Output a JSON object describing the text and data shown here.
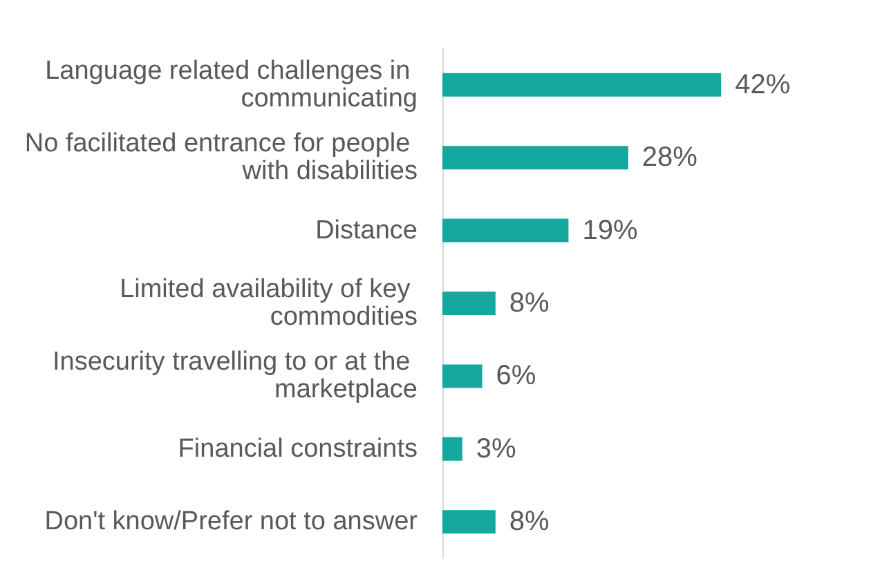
{
  "chart_data": {
    "type": "bar",
    "orientation": "horizontal",
    "categories": [
      "Language related challenges in communicating",
      "No facilitated entrance for people with disabilities",
      "Distance",
      "Limited availability of key commodities",
      "Insecurity travelling to or at the marketplace",
      "Financial constraints",
      "Don't know/Prefer not to answer"
    ],
    "values": [
      42,
      28,
      19,
      8,
      6,
      3,
      8
    ],
    "value_labels": [
      "42%",
      "28%",
      "19%",
      "8%",
      "6%",
      "3%",
      "8%"
    ],
    "color": "#14a89e",
    "tick_labels": "y"
  }
}
